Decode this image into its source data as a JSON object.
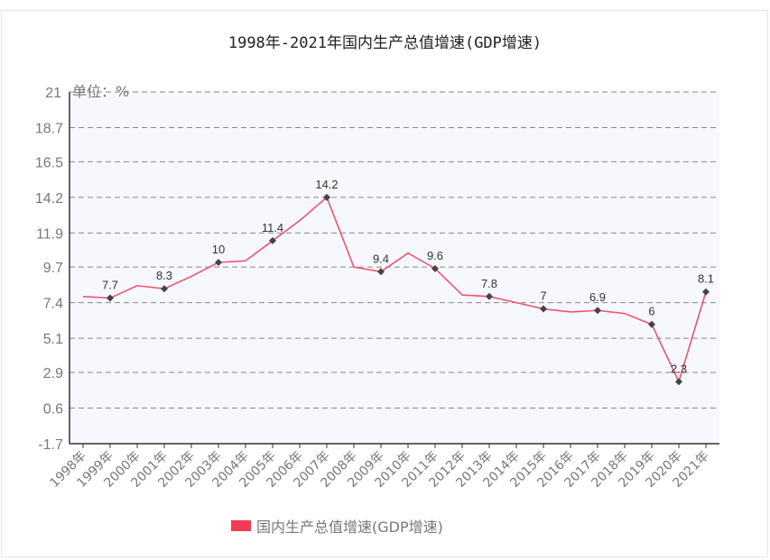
{
  "chart_data": {
    "type": "line",
    "title": "1998年-2021年国内生产总值增速(GDP增速)",
    "xlabel": "",
    "ylabel": "",
    "unit_label": "单位：%",
    "ylim": [
      -1.7,
      21
    ],
    "yticks": [
      21,
      18.7,
      16.5,
      14.2,
      11.9,
      9.7,
      7.4,
      5.1,
      2.9,
      0.6,
      -1.7
    ],
    "grid": true,
    "legend_position": "bottom",
    "categories": [
      "1998年",
      "1999年",
      "2000年",
      "2001年",
      "2002年",
      "2003年",
      "2004年",
      "2005年",
      "2006年",
      "2007年",
      "2008年",
      "2009年",
      "2010年",
      "2011年",
      "2012年",
      "2013年",
      "2014年",
      "2015年",
      "2016年",
      "2017年",
      "2018年",
      "2019年",
      "2020年",
      "2021年"
    ],
    "series": [
      {
        "name": "国内生产总值增速(GDP增速)",
        "color": "#f0546e",
        "values": [
          7.8,
          7.7,
          8.5,
          8.3,
          9.1,
          10,
          10.1,
          11.4,
          12.7,
          14.2,
          9.7,
          9.4,
          10.6,
          9.6,
          7.9,
          7.8,
          7.4,
          7,
          6.8,
          6.9,
          6.7,
          6,
          2.3,
          8.1
        ],
        "labeled_points": [
          {
            "index": 1,
            "label": "7.7"
          },
          {
            "index": 3,
            "label": "8.3"
          },
          {
            "index": 5,
            "label": "10"
          },
          {
            "index": 7,
            "label": "11.4"
          },
          {
            "index": 9,
            "label": "14.2"
          },
          {
            "index": 11,
            "label": "9.4"
          },
          {
            "index": 13,
            "label": "9.6"
          },
          {
            "index": 15,
            "label": "7.8"
          },
          {
            "index": 17,
            "label": "7"
          },
          {
            "index": 19,
            "label": "6.9"
          },
          {
            "index": 21,
            "label": "6"
          },
          {
            "index": 22,
            "label": "2.3"
          },
          {
            "index": 23,
            "label": "8.1"
          }
        ]
      }
    ]
  },
  "colors": {
    "plot_bg": "#f7f8fe",
    "grid": "#888888",
    "axis": "#333333",
    "line": "#f0546e",
    "marker": "#444444",
    "legend_swatch": "#f23a55"
  }
}
